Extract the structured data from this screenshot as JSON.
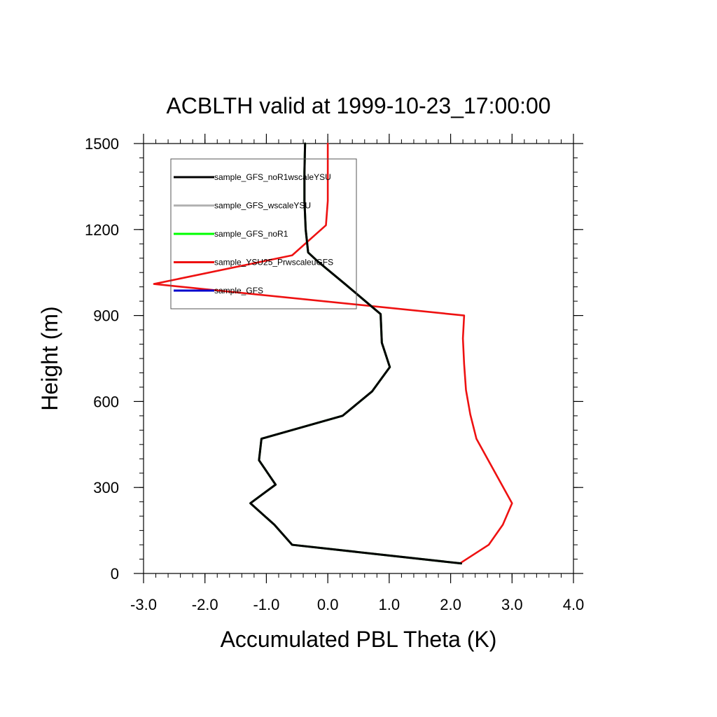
{
  "chart_data": {
    "type": "line",
    "title": "ACBLTH valid at 1999-10-23_17:00:00",
    "xlabel": "Accumulated PBL Theta (K)",
    "ylabel": "Height (m)",
    "xlim": [
      -3.0,
      4.0
    ],
    "ylim": [
      0,
      1500
    ],
    "xticks": [
      "-3.0",
      "-2.0",
      "-1.0",
      "0.0",
      "1.0",
      "2.0",
      "3.0",
      "4.0"
    ],
    "yticks": [
      "0",
      "300",
      "600",
      "900",
      "1200",
      "1500"
    ],
    "xtick_values": [
      -3,
      -2,
      -1,
      0,
      1,
      2,
      3,
      4
    ],
    "ytick_values": [
      0,
      300,
      600,
      900,
      1200,
      1500
    ],
    "grid": false,
    "legend_position": "top-left",
    "series": [
      {
        "name": "sample_GFS_noR1wscaleYSU",
        "color": "#000000",
        "x": [
          2.17,
          -0.58,
          -0.87,
          -1.26,
          -0.85,
          -1.12,
          -1.08,
          0.24,
          0.72,
          1.01,
          0.88,
          0.86,
          0.28,
          -0.17,
          -0.32,
          -0.36,
          -0.38,
          -0.38,
          -0.37
        ],
        "y": [
          35,
          100,
          170,
          245,
          310,
          395,
          470,
          550,
          635,
          720,
          805,
          905,
          1010,
          1090,
          1120,
          1200,
          1300,
          1400,
          1500
        ]
      },
      {
        "name": "sample_GFS_wscaleYSU",
        "color": "#b3b3b3",
        "x": [
          2.17,
          -0.58,
          -0.87,
          -1.26,
          -0.85,
          -1.12,
          -1.08,
          0.24,
          0.72,
          1.01,
          0.88,
          0.86,
          0.28,
          -0.17,
          -0.32,
          -0.36,
          -0.38,
          -0.38,
          -0.37
        ],
        "y": [
          35,
          100,
          170,
          245,
          310,
          395,
          470,
          550,
          635,
          720,
          805,
          905,
          1010,
          1090,
          1120,
          1200,
          1300,
          1400,
          1500
        ]
      },
      {
        "name": "sample_GFS_noR1",
        "color": "#00ff00",
        "x": [
          2.17,
          -0.58,
          -0.87,
          -1.26,
          -0.85,
          -1.12,
          -1.08,
          0.24,
          0.72,
          1.01,
          0.88,
          0.86,
          0.28,
          -0.17,
          -0.32,
          -0.36,
          -0.38,
          -0.38,
          -0.37
        ],
        "y": [
          35,
          100,
          170,
          245,
          310,
          395,
          470,
          550,
          635,
          720,
          805,
          905,
          1010,
          1090,
          1120,
          1200,
          1300,
          1400,
          1500
        ]
      },
      {
        "name": "sample_YSU25_PrwscaleuGFS",
        "color": "#ee1111",
        "x": [
          2.15,
          2.62,
          2.85,
          3.0,
          2.6,
          2.42,
          2.32,
          2.25,
          2.22,
          2.2,
          2.22,
          -2.83,
          -0.58,
          -0.03,
          0.0,
          0.0
        ],
        "y": [
          35,
          100,
          170,
          245,
          400,
          470,
          555,
          640,
          730,
          820,
          900,
          1010,
          1110,
          1215,
          1300,
          1500
        ]
      },
      {
        "name": "sample_GFS",
        "color": "#0000cc",
        "x": [],
        "y": []
      }
    ]
  }
}
